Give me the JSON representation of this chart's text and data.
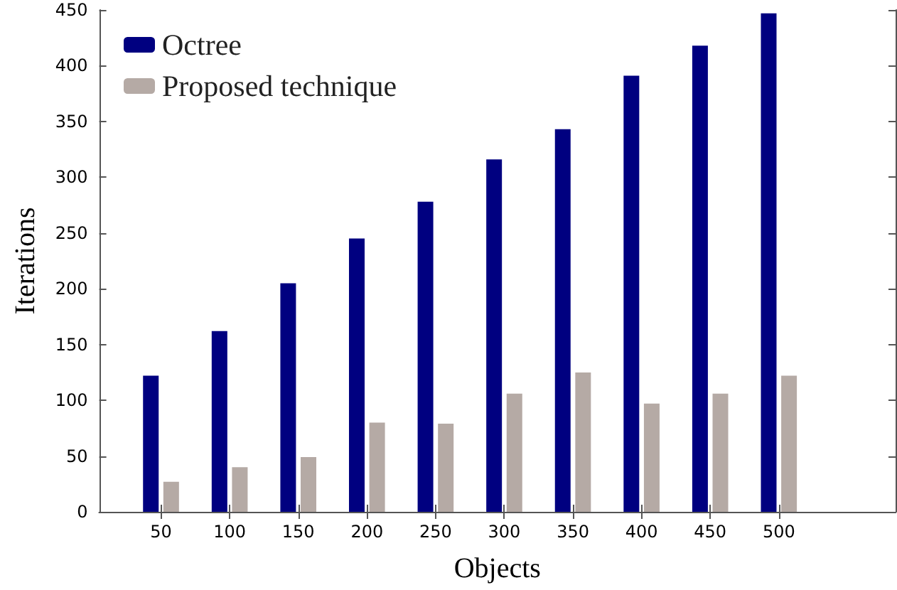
{
  "chart_data": {
    "type": "bar",
    "xlabel": "Objects",
    "ylabel": "Iterations",
    "x": [
      50,
      100,
      150,
      200,
      250,
      300,
      350,
      400,
      450,
      500
    ],
    "xlim": [
      5,
      585
    ],
    "xticks": [
      50,
      100,
      150,
      200,
      250,
      300,
      350,
      400,
      450,
      500
    ],
    "ylim": [
      0,
      450
    ],
    "yticks": [
      0,
      50,
      100,
      150,
      200,
      250,
      300,
      350,
      400,
      450
    ],
    "series": [
      {
        "name": "Octree",
        "color": "#000080",
        "values": [
          122,
          162,
          205,
          245,
          278,
          316,
          343,
          391,
          418,
          447
        ]
      },
      {
        "name": "Proposed technique",
        "color": "#b5aaa5",
        "values": [
          27,
          40,
          49,
          80,
          79,
          106,
          125,
          97,
          106,
          122
        ]
      }
    ],
    "grid": false,
    "legend": "top left"
  }
}
